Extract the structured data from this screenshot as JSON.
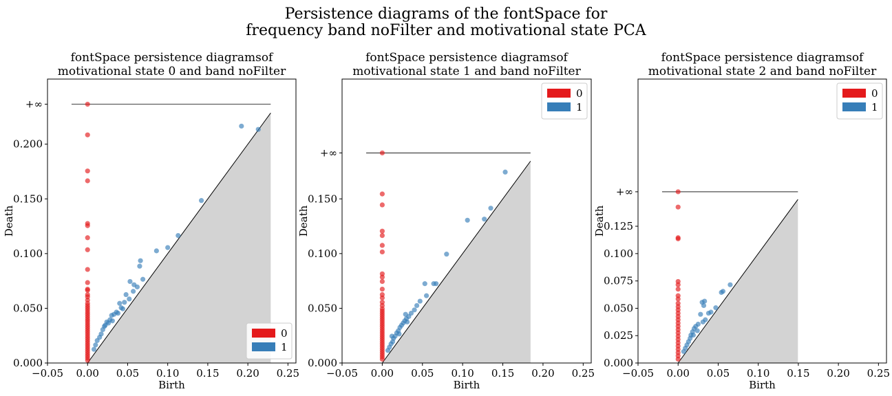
{
  "figure": {
    "title_line1": "Persistence diagrams of the fontSpace for",
    "title_line2": "frequency band noFilter and motivational state PCA"
  },
  "colors": {
    "dim0": "#e41a1c",
    "dim1": "#377eb8",
    "diagonal_fill": "#d3d3d3"
  },
  "chart_data": [
    {
      "type": "scatter",
      "title": [
        "fontSpace persistence diagramsof",
        "motivational state 0 and band noFilter"
      ],
      "xlabel": "Birth",
      "ylabel": "Death",
      "xlim": [
        -0.05,
        0.26
      ],
      "ylim": [
        0.0,
        0.2595
      ],
      "infinity_value": 0.2365,
      "infinity_label": "+∞",
      "diag_max": 0.2285,
      "xticks": [
        -0.05,
        0.0,
        0.05,
        0.1,
        0.15,
        0.2,
        0.25
      ],
      "xtick_labels": [
        "−0.05",
        "0.00",
        "0.05",
        "0.10",
        "0.15",
        "0.20",
        "0.25"
      ],
      "yticks": [
        0.0,
        0.05,
        0.1,
        0.15,
        0.2
      ],
      "ytick_labels": [
        "0.000",
        "0.050",
        "0.100",
        "0.150",
        "0.200"
      ],
      "legend": {
        "position": "lower right",
        "entries": [
          "0",
          "1"
        ]
      },
      "series": [
        {
          "name": "0",
          "color": "#e41a1c",
          "points": [
            [
              0,
              0.2365
            ],
            [
              0,
              0.2085
            ],
            [
              0,
              0.1755
            ],
            [
              0,
              0.1665
            ],
            [
              0,
              0.1275
            ],
            [
              0,
              0.1255
            ],
            [
              0,
              0.1145
            ],
            [
              0,
              0.1035
            ],
            [
              0,
              0.0855
            ],
            [
              0,
              0.0735
            ],
            [
              0,
              0.0675
            ],
            [
              0,
              0.0665
            ],
            [
              0,
              0.0625
            ],
            [
              0,
              0.0605
            ],
            [
              0,
              0.0575
            ],
            [
              0,
              0.0545
            ],
            [
              0,
              0.0525
            ],
            [
              0,
              0.0505
            ],
            [
              0,
              0.0485
            ],
            [
              0,
              0.0465
            ],
            [
              0,
              0.0445
            ],
            [
              0,
              0.0425
            ],
            [
              0,
              0.0405
            ],
            [
              0,
              0.0385
            ],
            [
              0,
              0.0365
            ],
            [
              0,
              0.0345
            ],
            [
              0,
              0.0325
            ],
            [
              0,
              0.0305
            ],
            [
              0,
              0.0285
            ],
            [
              0,
              0.0265
            ],
            [
              0,
              0.0245
            ],
            [
              0,
              0.0225
            ],
            [
              0,
              0.0205
            ],
            [
              0,
              0.0185
            ],
            [
              0,
              0.0165
            ],
            [
              0,
              0.0145
            ],
            [
              0,
              0.0125
            ],
            [
              0,
              0.0105
            ],
            [
              0,
              0.0085
            ],
            [
              0,
              0.0065
            ],
            [
              0,
              0.0045
            ],
            [
              0,
              0.0025
            ]
          ]
        },
        {
          "name": "1",
          "color": "#377eb8",
          "points": [
            [
              0.192,
              0.2165
            ],
            [
              0.213,
              0.2135
            ],
            [
              0.142,
              0.1485
            ],
            [
              0.113,
              0.1165
            ],
            [
              0.086,
              0.1025
            ],
            [
              0.1,
              0.1055
            ],
            [
              0.066,
              0.0935
            ],
            [
              0.065,
              0.0885
            ],
            [
              0.069,
              0.0765
            ],
            [
              0.053,
              0.0745
            ],
            [
              0.058,
              0.0715
            ],
            [
              0.062,
              0.0695
            ],
            [
              0.057,
              0.0655
            ],
            [
              0.048,
              0.0625
            ],
            [
              0.052,
              0.0585
            ],
            [
              0.046,
              0.0555
            ],
            [
              0.04,
              0.0545
            ],
            [
              0.042,
              0.0505
            ],
            [
              0.036,
              0.0465
            ],
            [
              0.033,
              0.0445
            ],
            [
              0.03,
              0.0435
            ],
            [
              0.028,
              0.0395
            ],
            [
              0.024,
              0.0375
            ],
            [
              0.022,
              0.0345
            ],
            [
              0.021,
              0.0335
            ],
            [
              0.017,
              0.0265
            ],
            [
              0.019,
              0.0305
            ],
            [
              0.015,
              0.0235
            ],
            [
              0.012,
              0.0205
            ],
            [
              0.01,
              0.0165
            ],
            [
              0.008,
              0.0125
            ],
            [
              0.026,
              0.0365
            ],
            [
              0.031,
              0.0385
            ],
            [
              0.038,
              0.0455
            ],
            [
              0.044,
              0.0495
            ]
          ]
        }
      ]
    },
    {
      "type": "scatter",
      "title": [
        "fontSpace persistence diagramsof",
        "motivational state 1 and band noFilter"
      ],
      "xlabel": "Birth",
      "ylabel": "Death",
      "xlim": [
        -0.05,
        0.26
      ],
      "ylim": [
        0.0,
        0.2595
      ],
      "infinity_value": 0.192,
      "infinity_label": "+∞",
      "diag_max": 0.1845,
      "xticks": [
        -0.05,
        0.0,
        0.05,
        0.1,
        0.15,
        0.2,
        0.25
      ],
      "xtick_labels": [
        "−0.05",
        "0.00",
        "0.05",
        "0.10",
        "0.15",
        "0.20",
        "0.25"
      ],
      "yticks": [
        0.0,
        0.05,
        0.1,
        0.15
      ],
      "ytick_labels": [
        "0.000",
        "0.050",
        "0.100",
        "0.150"
      ],
      "legend": {
        "position": "upper right",
        "entries": [
          "0",
          "1"
        ]
      },
      "series": [
        {
          "name": "0",
          "color": "#e41a1c",
          "points": [
            [
              0,
              0.192
            ],
            [
              0,
              0.1545
            ],
            [
              0,
              0.1445
            ],
            [
              0,
              0.1205
            ],
            [
              0,
              0.1165
            ],
            [
              0,
              0.1075
            ],
            [
              0,
              0.1015
            ],
            [
              0,
              0.0815
            ],
            [
              0,
              0.0785
            ],
            [
              0,
              0.0745
            ],
            [
              0,
              0.0675
            ],
            [
              0,
              0.0625
            ],
            [
              0,
              0.0595
            ],
            [
              0,
              0.0555
            ],
            [
              0,
              0.0525
            ],
            [
              0,
              0.0495
            ],
            [
              0,
              0.0475
            ],
            [
              0,
              0.0455
            ],
            [
              0,
              0.0435
            ],
            [
              0,
              0.0415
            ],
            [
              0,
              0.0395
            ],
            [
              0,
              0.0375
            ],
            [
              0,
              0.0355
            ],
            [
              0,
              0.0335
            ],
            [
              0,
              0.0315
            ],
            [
              0,
              0.0295
            ],
            [
              0,
              0.0275
            ],
            [
              0,
              0.0255
            ],
            [
              0,
              0.0235
            ],
            [
              0,
              0.0215
            ],
            [
              0,
              0.0195
            ],
            [
              0,
              0.0175
            ],
            [
              0,
              0.0155
            ],
            [
              0,
              0.0135
            ],
            [
              0,
              0.0115
            ],
            [
              0,
              0.0095
            ],
            [
              0,
              0.0075
            ],
            [
              0,
              0.0055
            ],
            [
              0,
              0.0035
            ]
          ]
        },
        {
          "name": "1",
          "color": "#377eb8",
          "points": [
            [
              0.153,
              0.1745
            ],
            [
              0.135,
              0.1415
            ],
            [
              0.127,
              0.1315
            ],
            [
              0.106,
              0.1305
            ],
            [
              0.08,
              0.0995
            ],
            [
              0.064,
              0.0725
            ],
            [
              0.067,
              0.0725
            ],
            [
              0.053,
              0.0725
            ],
            [
              0.055,
              0.0615
            ],
            [
              0.047,
              0.0565
            ],
            [
              0.043,
              0.0525
            ],
            [
              0.04,
              0.0485
            ],
            [
              0.036,
              0.0455
            ],
            [
              0.033,
              0.0425
            ],
            [
              0.03,
              0.0405
            ],
            [
              0.028,
              0.0385
            ],
            [
              0.026,
              0.0365
            ],
            [
              0.024,
              0.0345
            ],
            [
              0.022,
              0.0325
            ],
            [
              0.02,
              0.0295
            ],
            [
              0.018,
              0.0275
            ],
            [
              0.016,
              0.0245
            ],
            [
              0.014,
              0.0225
            ],
            [
              0.013,
              0.0195
            ],
            [
              0.011,
              0.0175
            ],
            [
              0.009,
              0.0145
            ],
            [
              0.007,
              0.0115
            ],
            [
              0.029,
              0.0445
            ],
            [
              0.031,
              0.0375
            ],
            [
              0.021,
              0.0265
            ],
            [
              0.012,
              0.0245
            ]
          ]
        }
      ]
    },
    {
      "type": "scatter",
      "title": [
        "fontSpace persistence diagramsof",
        "motivational state 2 and band noFilter"
      ],
      "xlabel": "Birth",
      "ylabel": "Death",
      "xlim": [
        -0.05,
        0.26
      ],
      "ylim": [
        0.0,
        0.2595
      ],
      "infinity_value": 0.1565,
      "infinity_label": "+∞",
      "diag_max": 0.1495,
      "xticks": [
        -0.05,
        0.0,
        0.05,
        0.1,
        0.15,
        0.2,
        0.25
      ],
      "xtick_labels": [
        "−0.05",
        "0.00",
        "0.05",
        "0.10",
        "0.15",
        "0.20",
        "0.25"
      ],
      "yticks": [
        0.0,
        0.025,
        0.05,
        0.075,
        0.1,
        0.125
      ],
      "ytick_labels": [
        "0.000",
        "0.025",
        "0.050",
        "0.075",
        "0.100",
        "0.125"
      ],
      "legend": {
        "position": "upper right",
        "entries": [
          "0",
          "1"
        ]
      },
      "series": [
        {
          "name": "0",
          "color": "#e41a1c",
          "points": [
            [
              0,
              0.1565
            ],
            [
              0,
              0.1425
            ],
            [
              0,
              0.1145
            ],
            [
              0,
              0.1135
            ],
            [
              0,
              0.0745
            ],
            [
              0,
              0.0715
            ],
            [
              0,
              0.0675
            ],
            [
              0,
              0.0615
            ],
            [
              0,
              0.0585
            ],
            [
              0,
              0.0545
            ],
            [
              0,
              0.0515
            ],
            [
              0,
              0.0485
            ],
            [
              0,
              0.0455
            ],
            [
              0,
              0.0425
            ],
            [
              0,
              0.0395
            ],
            [
              0,
              0.0365
            ],
            [
              0,
              0.0335
            ],
            [
              0,
              0.0305
            ],
            [
              0,
              0.0275
            ],
            [
              0,
              0.0245
            ],
            [
              0,
              0.0215
            ],
            [
              0,
              0.0185
            ],
            [
              0,
              0.0155
            ],
            [
              0,
              0.0125
            ],
            [
              0,
              0.0095
            ],
            [
              0,
              0.0065
            ],
            [
              0,
              0.0035
            ]
          ]
        },
        {
          "name": "1",
          "color": "#377eb8",
          "points": [
            [
              0.065,
              0.0715
            ],
            [
              0.056,
              0.0655
            ],
            [
              0.054,
              0.0645
            ],
            [
              0.047,
              0.0505
            ],
            [
              0.041,
              0.0465
            ],
            [
              0.038,
              0.0455
            ],
            [
              0.033,
              0.0565
            ],
            [
              0.03,
              0.0555
            ],
            [
              0.032,
              0.0525
            ],
            [
              0.028,
              0.0445
            ],
            [
              0.034,
              0.0395
            ],
            [
              0.031,
              0.0375
            ],
            [
              0.025,
              0.0355
            ],
            [
              0.022,
              0.0335
            ],
            [
              0.02,
              0.0315
            ],
            [
              0.018,
              0.0285
            ],
            [
              0.016,
              0.0255
            ],
            [
              0.015,
              0.0225
            ],
            [
              0.013,
              0.0195
            ],
            [
              0.011,
              0.0165
            ],
            [
              0.009,
              0.0135
            ],
            [
              0.007,
              0.0105
            ],
            [
              0.019,
              0.0255
            ],
            [
              0.024,
              0.0295
            ]
          ]
        }
      ]
    }
  ]
}
